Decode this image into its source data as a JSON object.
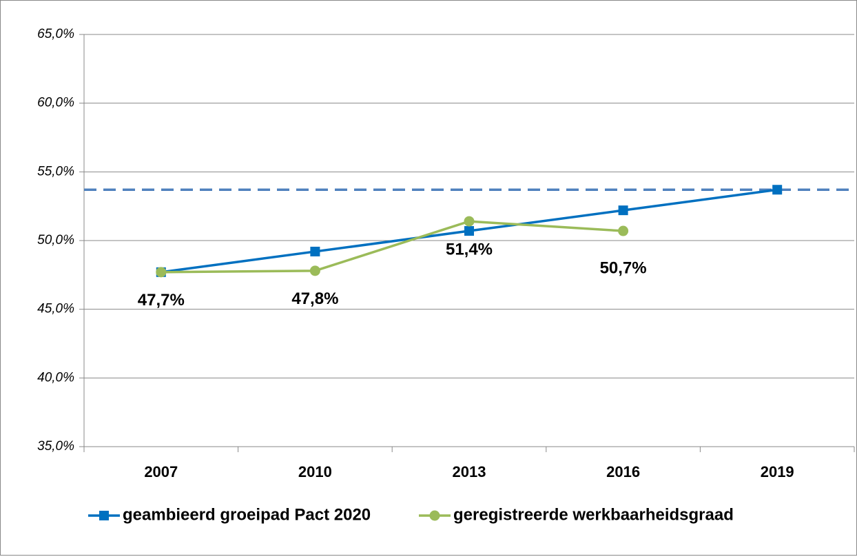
{
  "chart_data": {
    "type": "line",
    "categories": [
      "2007",
      "2010",
      "2013",
      "2016",
      "2019"
    ],
    "series": [
      {
        "name": "geambieerd groeipad Pact 2020",
        "color": "#0070c0",
        "marker": "square",
        "values": [
          47.7,
          49.2,
          50.7,
          52.2,
          53.7
        ]
      },
      {
        "name": "geregistreerde werkbaarheidsgraad",
        "color": "#9bbb59",
        "marker": "circle",
        "values": [
          47.7,
          47.8,
          51.4,
          50.7,
          null
        ],
        "value_labels": [
          "47,7%",
          "47,8%",
          "51,4%",
          "50,7%",
          null
        ]
      }
    ],
    "hline": {
      "value": 53.7,
      "color": "#4f81bd",
      "style": "dashed"
    },
    "ylim": [
      35,
      65
    ],
    "yticks": [
      {
        "value": 35,
        "label": "35,0%"
      },
      {
        "value": 40,
        "label": "40,0%"
      },
      {
        "value": 45,
        "label": "45,0%"
      },
      {
        "value": 50,
        "label": "50,0%"
      },
      {
        "value": 55,
        "label": "55,0%"
      },
      {
        "value": 60,
        "label": "60,0%"
      },
      {
        "value": 65,
        "label": "65,0%"
      }
    ],
    "grid": true,
    "legend": "bottom"
  }
}
